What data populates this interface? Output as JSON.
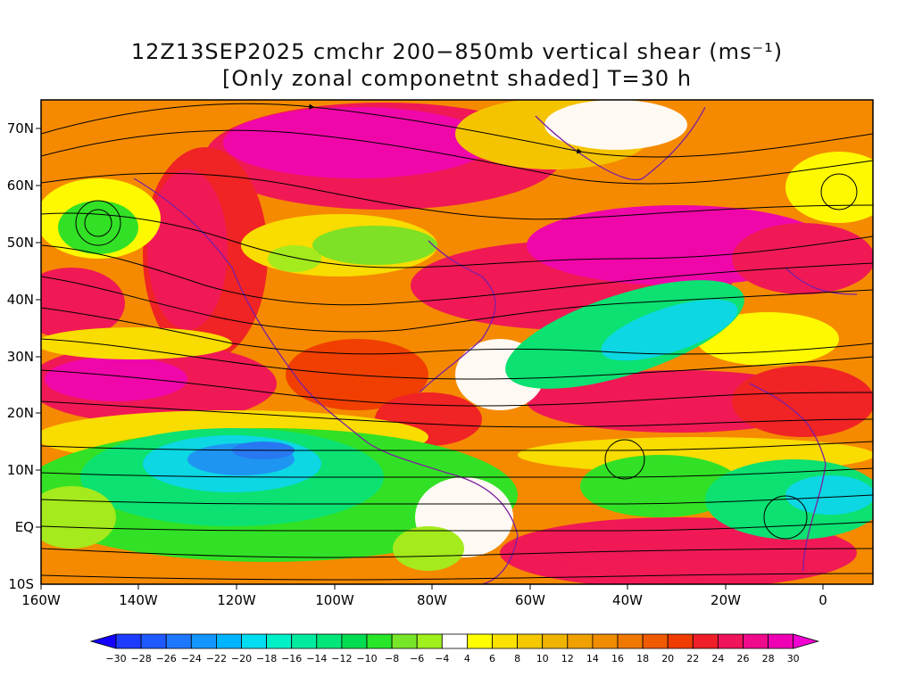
{
  "title": {
    "line1": "12Z13SEP2025 cmchr 200−850mb vertical shear (ms⁻¹)",
    "line2": "[Only zonal componetnt shaded] T=30 h"
  },
  "map": {
    "projection": "lat-lon",
    "lon_range": [
      -160,
      10
    ],
    "lat_range": [
      -10,
      75
    ],
    "y_ticks": [
      "70N",
      "60N",
      "50N",
      "40N",
      "30N",
      "20N",
      "10N",
      "EQ",
      "10S"
    ],
    "x_ticks": [
      "160W",
      "140W",
      "120W",
      "100W",
      "80W",
      "60W",
      "40W",
      "20W",
      "0"
    ],
    "overlay": "streamlines",
    "coastline_color": "#7b1fa2"
  },
  "colorbar": {
    "labels": [
      "−30",
      "−28",
      "−26",
      "−24",
      "−22",
      "−20",
      "−18",
      "−16",
      "−14",
      "−12",
      "−10",
      "−8",
      "−6",
      "−4",
      "4",
      "6",
      "8",
      "10",
      "12",
      "14",
      "16",
      "18",
      "20",
      "22",
      "24",
      "26",
      "28",
      "30"
    ],
    "colors": [
      "#1e3cff",
      "#1e5aff",
      "#1e78ff",
      "#1496ff",
      "#00b4ff",
      "#00dcf0",
      "#00f0c8",
      "#00eba0",
      "#00e678",
      "#00dc50",
      "#28e628",
      "#78e628",
      "#a0f01e",
      "#ffffff",
      "#ffff00",
      "#fae100",
      "#f5c800",
      "#f0b400",
      "#f0a000",
      "#f08c00",
      "#f07800",
      "#f05a00",
      "#f03c00",
      "#f01e28",
      "#f0145a",
      "#f00a8c",
      "#f000b4"
    ],
    "under_color": "#1400ff",
    "over_color": "#f000d2"
  }
}
